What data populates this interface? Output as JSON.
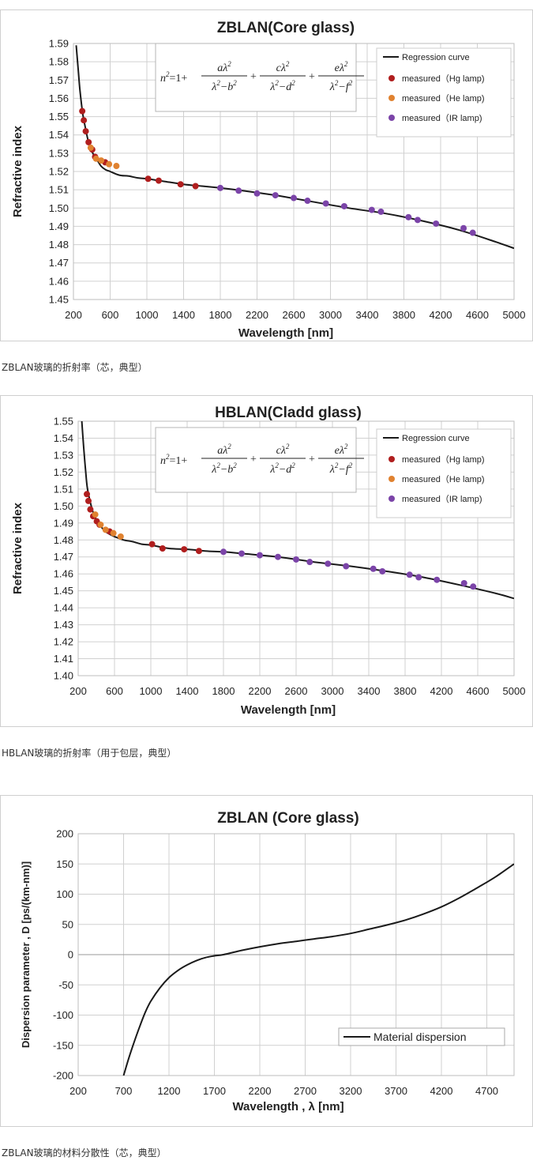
{
  "panels": [
    {
      "caption": "ZBLAN玻璃的折射率（芯，典型）",
      "formula": {
        "lhs": "n",
        "lhs_sup": "2",
        "eq": "=1+",
        "terms": [
          {
            "num": "aλ",
            "num_sup": "2",
            "den": "λ",
            "den_sup": "2",
            "den_minus": "−b",
            "den_minus_sup": "2"
          },
          {
            "num": "cλ",
            "num_sup": "2",
            "den": "λ",
            "den_sup": "2",
            "den_minus": "−d",
            "den_minus_sup": "2"
          },
          {
            "num": "eλ",
            "num_sup": "2",
            "den": "λ",
            "den_sup": "2",
            "den_minus": "−f",
            "den_minus_sup": "2"
          }
        ],
        "plus": "+"
      },
      "legend": {
        "line": "Regression curve",
        "items": [
          {
            "label": "measured（Hg lamp)",
            "color": "#b01e1e"
          },
          {
            "label": "measured（He lamp)",
            "color": "#e08230"
          },
          {
            "label": "measured（IR lamp)",
            "color": "#7b44a8"
          }
        ]
      }
    },
    {
      "caption": "HBLAN玻璃的折射率（用于包层，典型）",
      "formula": {
        "lhs": "n",
        "lhs_sup": "2",
        "eq": "=1+",
        "terms": [
          {
            "num": "aλ",
            "num_sup": "2",
            "den": "λ",
            "den_sup": "2",
            "den_minus": "−b",
            "den_minus_sup": "2"
          },
          {
            "num": "cλ",
            "num_sup": "2",
            "den": "λ",
            "den_sup": "2",
            "den_minus": "−d",
            "den_minus_sup": "2"
          },
          {
            "num": "eλ",
            "num_sup": "2",
            "den": "λ",
            "den_sup": "2",
            "den_minus": "−f",
            "den_minus_sup": "2"
          }
        ],
        "plus": "+"
      },
      "legend": {
        "line": "Regression curve",
        "items": [
          {
            "label": "measured（Hg lamp)",
            "color": "#b01e1e"
          },
          {
            "label": "measured（He lamp)",
            "color": "#e08230"
          },
          {
            "label": "measured（IR lamp)",
            "color": "#7b44a8"
          }
        ]
      }
    },
    {
      "caption": "ZBLAN玻璃的材料分散性（芯，典型）",
      "legend": {
        "line": "Material dispersion"
      }
    }
  ],
  "chart_data": [
    {
      "type": "line",
      "title": "ZBLAN(Core glass)",
      "xlabel": "Wavelength [nm]",
      "ylabel": "Refractive index",
      "xlim": [
        200,
        5000
      ],
      "ylim": [
        1.45,
        1.59
      ],
      "xticks": [
        200,
        600,
        1000,
        1400,
        1800,
        2200,
        2600,
        3000,
        3400,
        3800,
        4200,
        4600,
        5000
      ],
      "yticks": [
        1.45,
        1.46,
        1.47,
        1.48,
        1.49,
        1.5,
        1.51,
        1.52,
        1.53,
        1.54,
        1.55,
        1.56,
        1.57,
        1.58,
        1.59
      ],
      "ytick_decimals": 2,
      "grid": true,
      "legend_position": "top-right",
      "series": [
        {
          "name": "Regression curve",
          "kind": "line",
          "color": "#1a1a1a",
          "x": [
            230,
            250,
            270,
            300,
            330,
            360,
            400,
            450,
            500,
            550,
            600,
            700,
            800,
            900,
            1000,
            1200,
            1400,
            1600,
            1800,
            2000,
            2400,
            2800,
            3200,
            3600,
            4000,
            4400,
            4800,
            5000
          ],
          "y": [
            1.589,
            1.577,
            1.565,
            1.552,
            1.544,
            1.537,
            1.531,
            1.527,
            1.523,
            1.521,
            1.52,
            1.518,
            1.5175,
            1.5165,
            1.516,
            1.5145,
            1.513,
            1.512,
            1.511,
            1.5098,
            1.507,
            1.5035,
            1.5,
            1.497,
            1.493,
            1.488,
            1.4815,
            1.478
          ]
        },
        {
          "name": "measured（Hg lamp)",
          "kind": "scatter",
          "color": "#b01e1e",
          "x": [
            296,
            313,
            334,
            365,
            405,
            436,
            546,
            1014,
            1129,
            1367,
            1530
          ],
          "y": [
            1.553,
            1.548,
            1.542,
            1.536,
            1.532,
            1.528,
            1.525,
            1.516,
            1.515,
            1.513,
            1.512
          ]
        },
        {
          "name": "measured（He lamp)",
          "kind": "scatter",
          "color": "#e08230",
          "x": [
            388,
            447,
            502,
            588,
            668
          ],
          "y": [
            1.533,
            1.527,
            1.526,
            1.524,
            1.523
          ]
        },
        {
          "name": "measured（IR lamp)",
          "kind": "scatter",
          "color": "#7b44a8",
          "x": [
            1800,
            2000,
            2200,
            2400,
            2600,
            2750,
            2950,
            3150,
            3450,
            3550,
            3850,
            3950,
            4150,
            4450,
            4550
          ],
          "y": [
            1.511,
            1.5095,
            1.508,
            1.507,
            1.5055,
            1.504,
            1.5025,
            1.501,
            1.499,
            1.498,
            1.495,
            1.4935,
            1.4915,
            1.489,
            1.4865
          ]
        }
      ]
    },
    {
      "type": "line",
      "title": "HBLAN(Cladd glass)",
      "xlabel": "Wavelength [nm]",
      "ylabel": "Refractive index",
      "xlim": [
        200,
        5000
      ],
      "ylim": [
        1.4,
        1.55
      ],
      "xticks": [
        200,
        600,
        1000,
        1400,
        1800,
        2200,
        2600,
        3000,
        3400,
        3800,
        4200,
        4600,
        5000
      ],
      "yticks": [
        1.4,
        1.41,
        1.42,
        1.43,
        1.44,
        1.45,
        1.46,
        1.47,
        1.48,
        1.49,
        1.5,
        1.51,
        1.52,
        1.53,
        1.54,
        1.55
      ],
      "ytick_decimals": 2,
      "grid": true,
      "legend_position": "top-right",
      "series": [
        {
          "name": "Regression curve",
          "kind": "line",
          "color": "#1a1a1a",
          "x": [
            240,
            260,
            280,
            300,
            330,
            360,
            400,
            450,
            500,
            560,
            600,
            700,
            800,
            900,
            1000,
            1200,
            1400,
            1600,
            1800,
            2000,
            2400,
            2800,
            3200,
            3600,
            4000,
            4400,
            4800,
            5000
          ],
          "y": [
            1.55,
            1.535,
            1.522,
            1.511,
            1.503,
            1.497,
            1.492,
            1.488,
            1.485,
            1.483,
            1.482,
            1.48,
            1.479,
            1.4775,
            1.477,
            1.475,
            1.4745,
            1.4735,
            1.473,
            1.472,
            1.47,
            1.467,
            1.4645,
            1.4615,
            1.458,
            1.4535,
            1.4485,
            1.4455
          ]
        },
        {
          "name": "measured（Hg lamp)",
          "kind": "scatter",
          "color": "#b01e1e",
          "x": [
            296,
            313,
            334,
            365,
            405,
            436,
            546,
            1014,
            1129,
            1367,
            1530
          ],
          "y": [
            1.507,
            1.503,
            1.498,
            1.494,
            1.491,
            1.489,
            1.485,
            1.4775,
            1.475,
            1.4745,
            1.4735
          ]
        },
        {
          "name": "measured（He lamp)",
          "kind": "scatter",
          "color": "#e08230",
          "x": [
            388,
            447,
            502,
            588,
            668
          ],
          "y": [
            1.495,
            1.489,
            1.486,
            1.484,
            1.482
          ]
        },
        {
          "name": "measured（IR lamp)",
          "kind": "scatter",
          "color": "#7b44a8",
          "x": [
            1800,
            2000,
            2200,
            2400,
            2600,
            2750,
            2950,
            3150,
            3450,
            3550,
            3850,
            3950,
            4150,
            4450,
            4550
          ],
          "y": [
            1.473,
            1.472,
            1.471,
            1.47,
            1.4685,
            1.467,
            1.466,
            1.4645,
            1.463,
            1.4615,
            1.4595,
            1.458,
            1.4565,
            1.4545,
            1.4525
          ]
        }
      ]
    },
    {
      "type": "line",
      "title": "ZBLAN (Core glass)",
      "xlabel": "Wavelength , λ [nm]",
      "ylabel": "Dispersion parameter , D [ps/(km-nm)]",
      "xlim": [
        200,
        5000
      ],
      "ylim": [
        -200,
        200
      ],
      "xticks": [
        200,
        700,
        1200,
        1700,
        2200,
        2700,
        3200,
        3700,
        4200,
        4700
      ],
      "yticks": [
        -200,
        -150,
        -100,
        -50,
        0,
        50,
        100,
        150,
        200
      ],
      "ytick_decimals": 0,
      "grid": true,
      "legend_position": "bottom-right",
      "series": [
        {
          "name": "Material dispersion",
          "kind": "line",
          "color": "#1a1a1a",
          "x": [
            700,
            760,
            820,
            880,
            940,
            1000,
            1100,
            1200,
            1300,
            1400,
            1500,
            1600,
            1700,
            1800,
            2000,
            2200,
            2400,
            2600,
            2800,
            3000,
            3200,
            3400,
            3600,
            3800,
            4000,
            4200,
            4400,
            4600,
            4800,
            5000
          ],
          "y": [
            -200,
            -170,
            -143,
            -118,
            -95,
            -77,
            -55,
            -38,
            -26,
            -17,
            -10,
            -5,
            -2,
            0,
            7,
            13,
            18,
            22,
            26,
            30,
            35,
            42,
            49,
            57,
            67,
            79,
            94,
            111,
            129,
            150
          ]
        }
      ]
    }
  ]
}
